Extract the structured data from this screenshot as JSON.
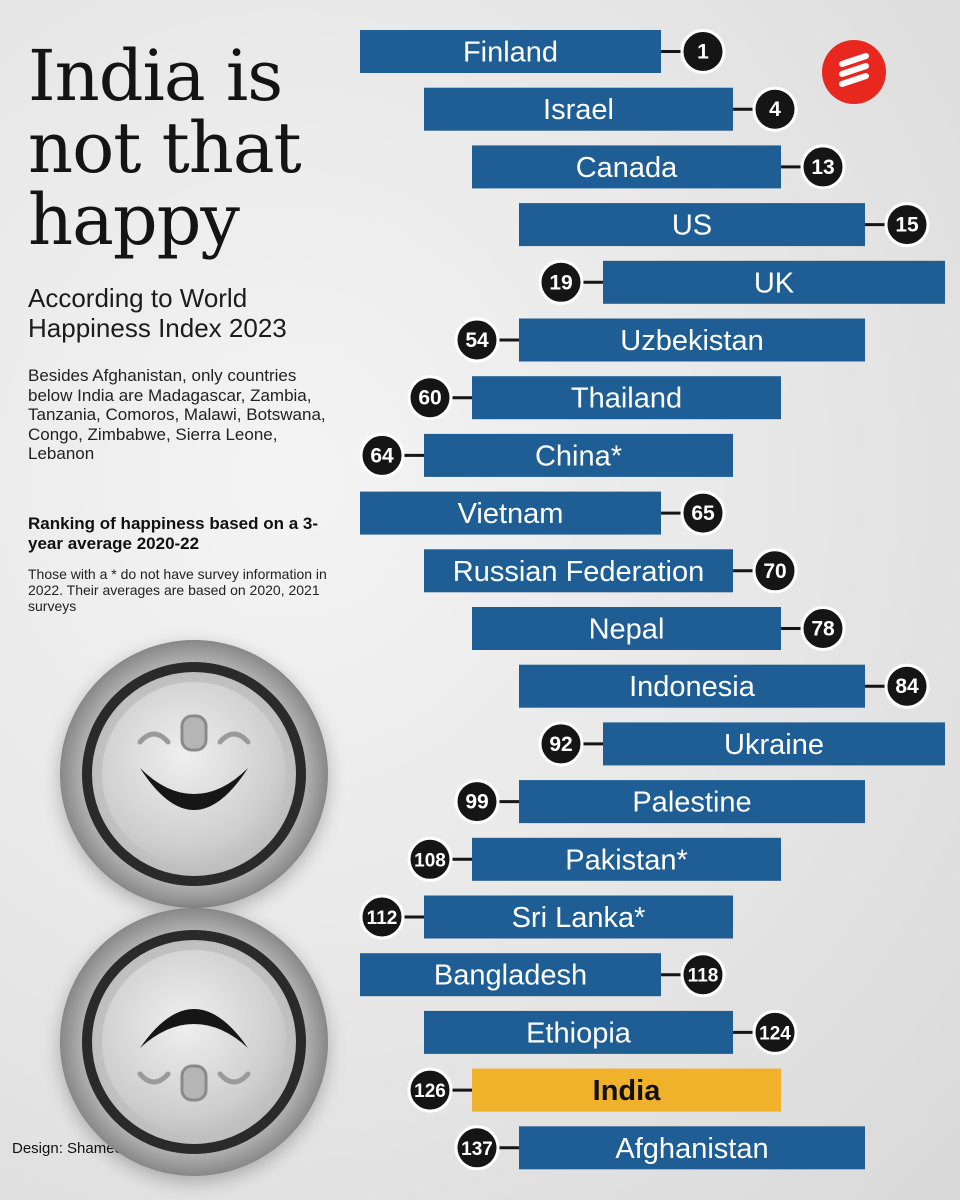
{
  "headline": "India is not that happy",
  "subhead": "According to World Happiness Index 2023",
  "note": "Besides Afghanistan, only countries below India are Madagascar, Zambia, Tanzania, Comoros, Malawi, Botswana, Congo, Zimbabwe, Sierra Leone, Lebanon",
  "method_title": "Ranking of happiness based on a 3-year average 2020-22",
  "method_note": "Those with a * do not have survey information in 2022. Their averages are based on 2020, 2021 surveys",
  "credit": "Design: Shameen",
  "logo_icon": "indian-express-logo-icon",
  "colors": {
    "bar": "#1f5e95",
    "highlight": "#f0b12b",
    "badge": "#151515",
    "label": "#ffffff",
    "highlight_label": "#111111",
    "logo": "#e8271f"
  },
  "chart_data": {
    "type": "bar",
    "title": "World Happiness Index 2023 ranking",
    "value_label": "Rank",
    "highlight": "India",
    "categories": [
      "Finland",
      "Israel",
      "Canada",
      "US",
      "UK",
      "Uzbekistan",
      "Thailand",
      "China*",
      "Vietnam",
      "Russian Federation",
      "Nepal",
      "Indonesia",
      "Ukraine",
      "Palestine",
      "Pakistan*",
      "Sri Lanka*",
      "Bangladesh",
      "Ethiopia",
      "India",
      "Afghanistan"
    ],
    "values": [
      1,
      4,
      13,
      15,
      19,
      54,
      60,
      64,
      65,
      70,
      78,
      84,
      92,
      99,
      108,
      112,
      118,
      124,
      126,
      137
    ]
  }
}
